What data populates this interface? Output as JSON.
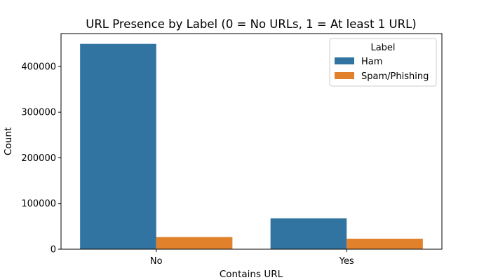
{
  "chart_data": {
    "type": "bar",
    "title": "URL Presence by Label (0 = No URLs, 1 = At least 1 URL)",
    "xlabel": "Contains URL",
    "ylabel": "Count",
    "categories": [
      "No",
      "Yes"
    ],
    "series": [
      {
        "name": "Ham",
        "values": [
          449500,
          67500
        ],
        "color": "#3274a1"
      },
      {
        "name": "Spam/Phishing",
        "values": [
          26500,
          23000
        ],
        "color": "#e1812c"
      }
    ],
    "ylim": [
      0,
      472000
    ],
    "yticks": [
      0,
      100000,
      200000,
      300000,
      400000
    ],
    "ytick_labels": [
      "0",
      "100000",
      "200000",
      "300000",
      "400000"
    ],
    "grid": false,
    "legend": {
      "title": "Label",
      "position": "top-right"
    }
  }
}
